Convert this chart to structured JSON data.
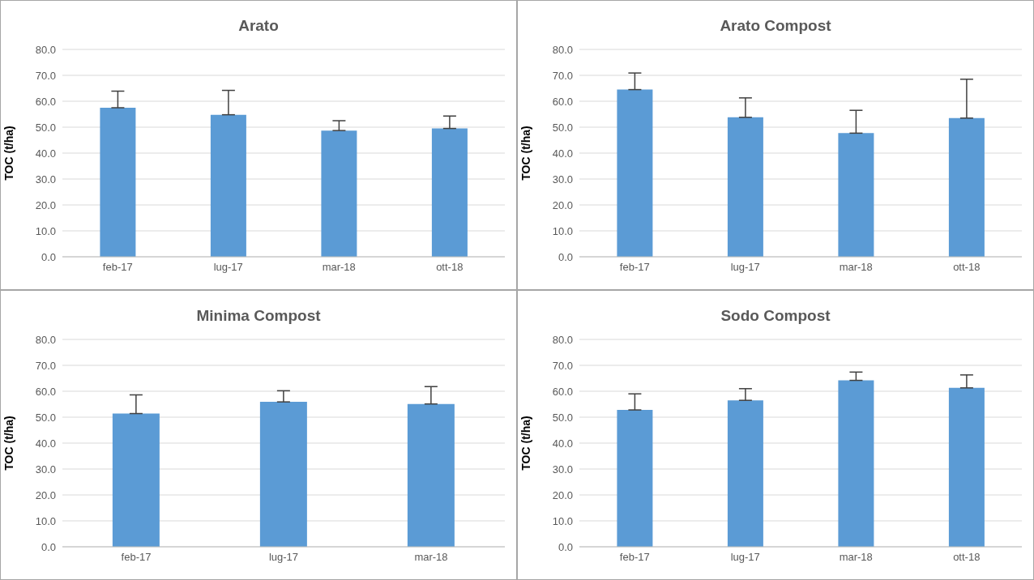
{
  "chart_data": [
    {
      "type": "bar",
      "title": "Arato",
      "ylabel": "TOC (t/ha)",
      "categories": [
        "feb-17",
        "lug-17",
        "mar-18",
        "ott-18"
      ],
      "values": [
        57.5,
        54.8,
        48.7,
        49.5
      ],
      "errors": [
        [
          57.5,
          63.9
        ],
        [
          54.8,
          64.2
        ],
        [
          48.7,
          52.5
        ],
        [
          49.5,
          54.3
        ]
      ],
      "color": "#5b9bd5",
      "ylim": [
        0,
        80
      ],
      "yticks": [
        {
          "value": 0,
          "label": "0.0"
        },
        {
          "value": 10,
          "label": "10.0"
        },
        {
          "value": 20,
          "label": "20.0"
        },
        {
          "value": 30,
          "label": "30.0"
        },
        {
          "value": 40,
          "label": "40.0"
        },
        {
          "value": 50,
          "label": "50.0"
        },
        {
          "value": 60,
          "label": "60.0"
        },
        {
          "value": 70,
          "label": "70.0"
        },
        {
          "value": 80,
          "label": "80.0"
        }
      ],
      "grid": "y"
    },
    {
      "type": "bar",
      "title": "Arato Compost",
      "ylabel": "TOC (t/ha)",
      "categories": [
        "feb-17",
        "lug-17",
        "mar-18",
        "ott-18"
      ],
      "values": [
        64.5,
        53.8,
        47.7,
        53.5
      ],
      "errors": [
        [
          64.5,
          70.9
        ],
        [
          53.8,
          61.3
        ],
        [
          47.7,
          56.5
        ],
        [
          53.5,
          68.5
        ]
      ],
      "color": "#5b9bd5",
      "ylim": [
        0,
        80
      ],
      "yticks": [
        {
          "value": 0,
          "label": "0.0"
        },
        {
          "value": 10,
          "label": "10.0"
        },
        {
          "value": 20,
          "label": "20.0"
        },
        {
          "value": 30,
          "label": "30.0"
        },
        {
          "value": 40,
          "label": "40.0"
        },
        {
          "value": 50,
          "label": "50.0"
        },
        {
          "value": 60,
          "label": "60.0"
        },
        {
          "value": 70,
          "label": "70.0"
        },
        {
          "value": 80,
          "label": "80.0"
        }
      ],
      "grid": "y"
    },
    {
      "type": "bar",
      "title": "Minima Compost",
      "ylabel": "TOC (t/ha)",
      "categories": [
        "feb-17",
        "lug-17",
        "mar-18"
      ],
      "values": [
        51.4,
        55.9,
        55.1
      ],
      "errors": [
        [
          51.4,
          58.6
        ],
        [
          55.9,
          60.2
        ],
        [
          55.1,
          61.8
        ]
      ],
      "color": "#5b9bd5",
      "ylim": [
        0,
        80
      ],
      "yticks": [
        {
          "value": 0,
          "label": "0.0"
        },
        {
          "value": 10,
          "label": "10.0"
        },
        {
          "value": 20,
          "label": "20.0"
        },
        {
          "value": 30,
          "label": "30.0"
        },
        {
          "value": 40,
          "label": "40.0"
        },
        {
          "value": 50,
          "label": "50.0"
        },
        {
          "value": 60,
          "label": "60.0"
        },
        {
          "value": 70,
          "label": "70.0"
        },
        {
          "value": 80,
          "label": "80.0"
        }
      ],
      "grid": "y"
    },
    {
      "type": "bar",
      "title": "Sodo Compost",
      "ylabel": "TOC (t/ha)",
      "categories": [
        "feb-17",
        "lug-17",
        "mar-18",
        "ott-18"
      ],
      "values": [
        52.8,
        56.5,
        64.2,
        61.3
      ],
      "errors": [
        [
          52.8,
          59.0
        ],
        [
          56.5,
          61.0
        ],
        [
          64.2,
          67.4
        ],
        [
          61.3,
          66.3
        ]
      ],
      "color": "#5b9bd5",
      "ylim": [
        0,
        80
      ],
      "yticks": [
        {
          "value": 0,
          "label": "0.0"
        },
        {
          "value": 10,
          "label": "10.0"
        },
        {
          "value": 20,
          "label": "20.0"
        },
        {
          "value": 30,
          "label": "30.0"
        },
        {
          "value": 40,
          "label": "40.0"
        },
        {
          "value": 50,
          "label": "50.0"
        },
        {
          "value": 60,
          "label": "60.0"
        },
        {
          "value": 70,
          "label": "70.0"
        },
        {
          "value": 80,
          "label": "80.0"
        }
      ],
      "grid": "y"
    }
  ]
}
